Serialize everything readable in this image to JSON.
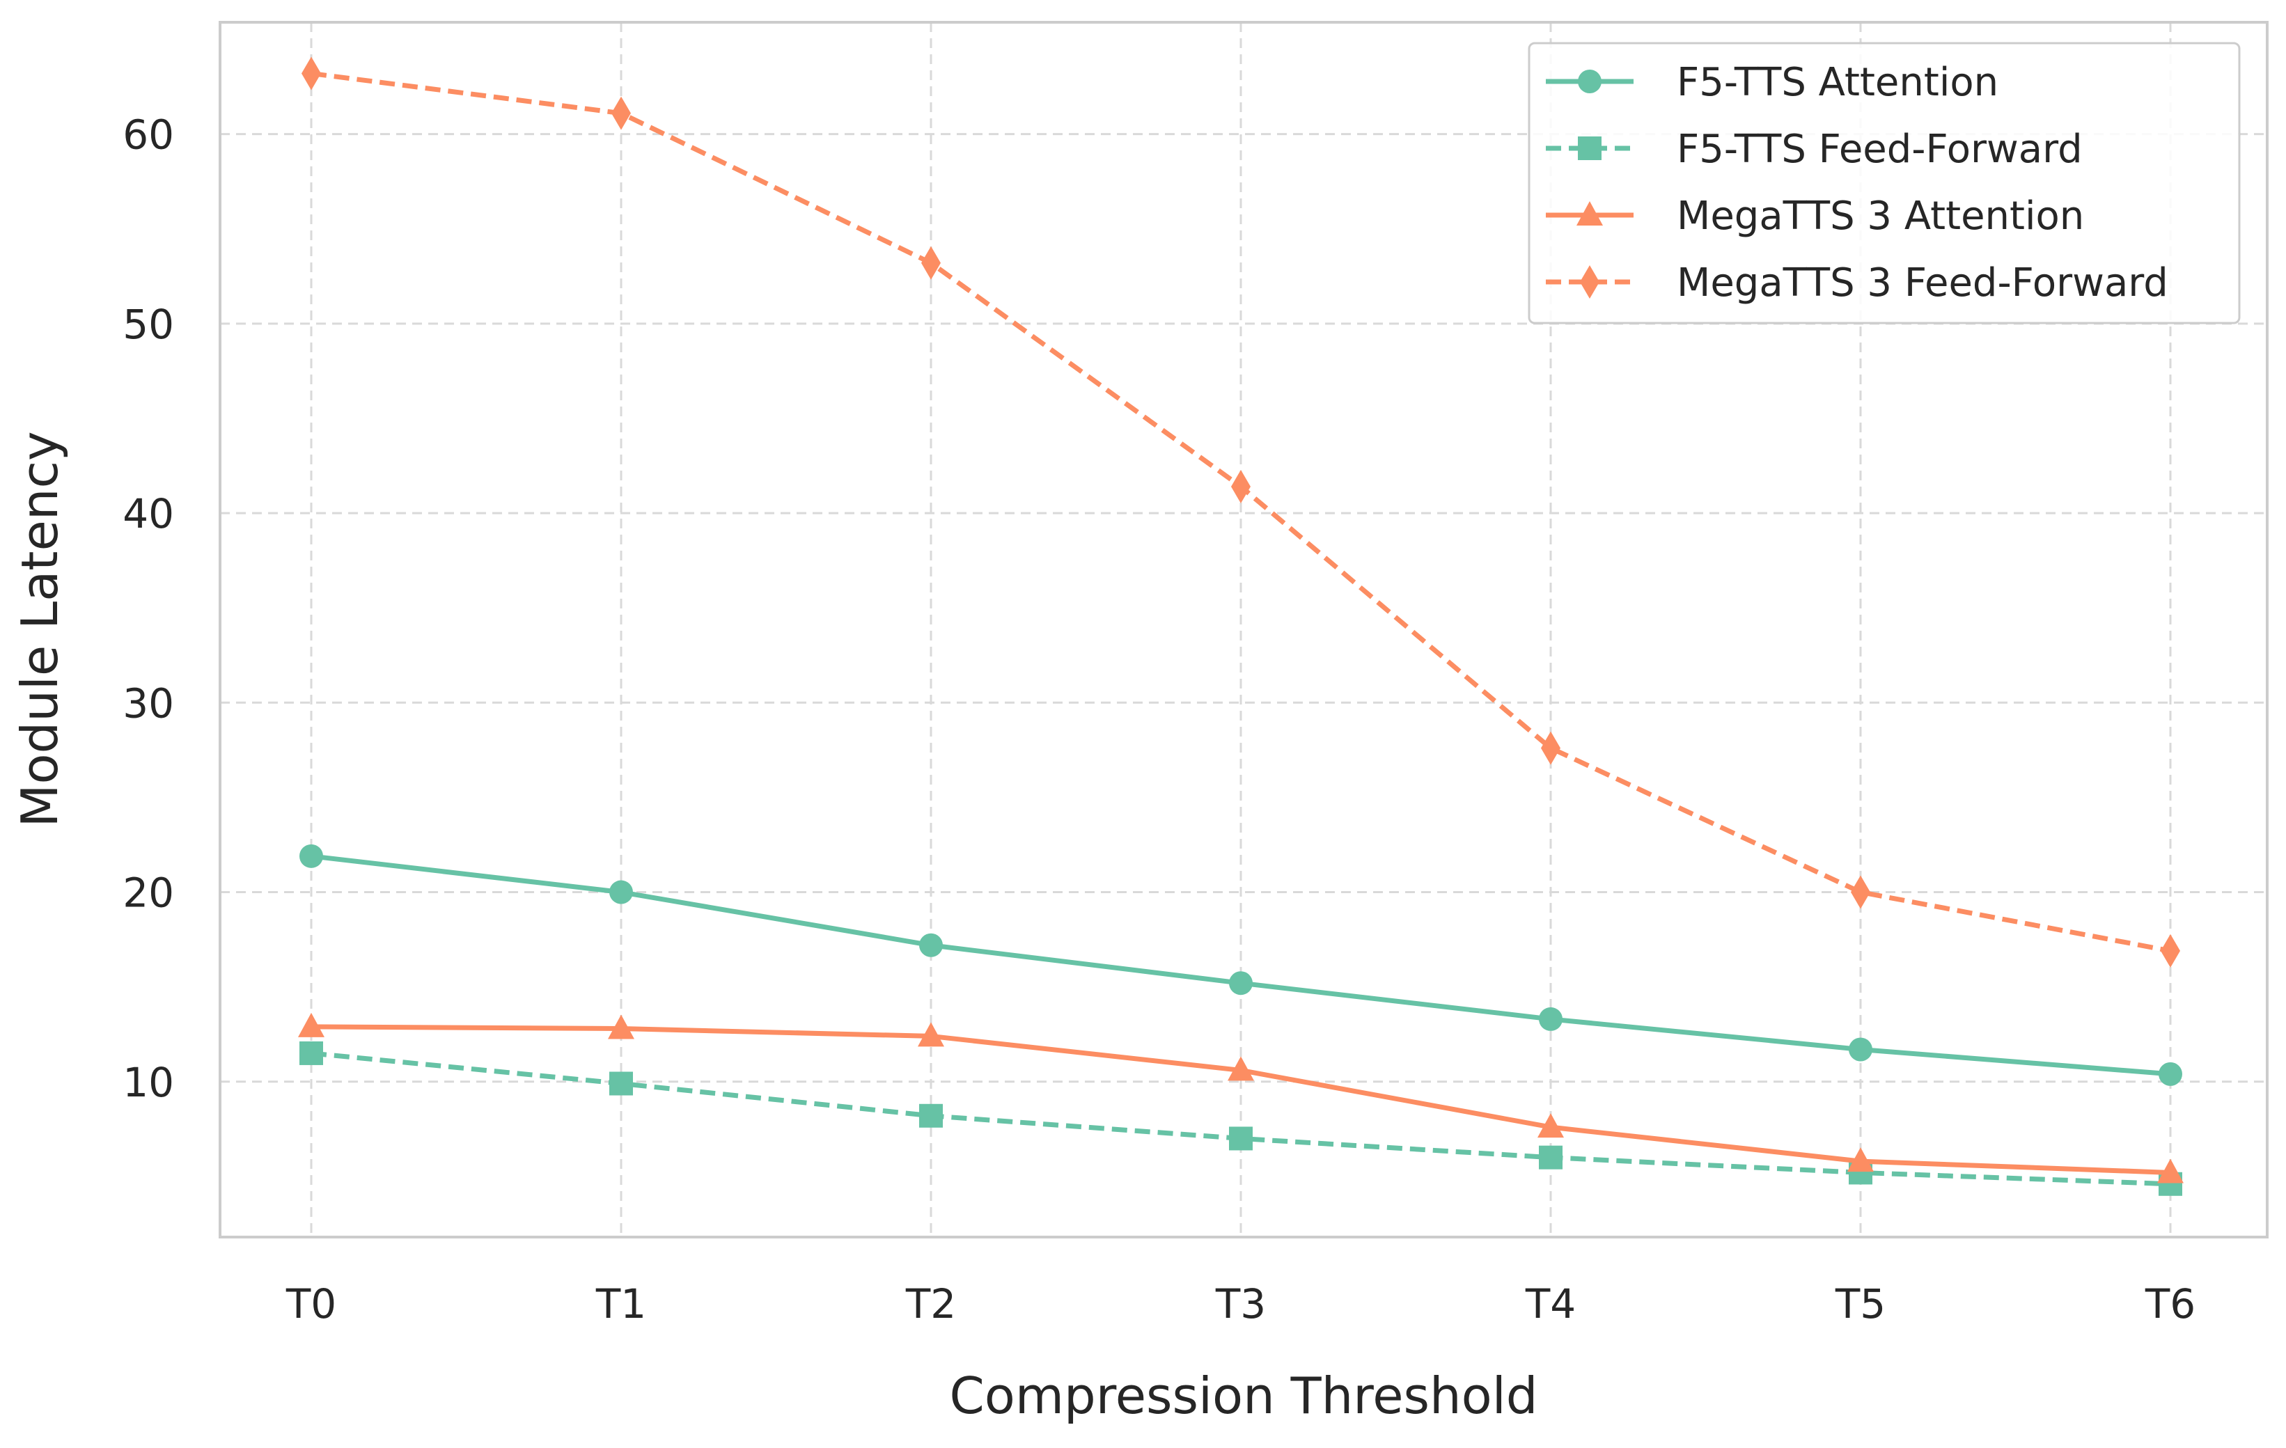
{
  "chart_data": {
    "type": "line",
    "xlabel": "Compression Threshold",
    "ylabel": "Module Latency",
    "categories": [
      "T0",
      "T1",
      "T2",
      "T3",
      "T4",
      "T5",
      "T6"
    ],
    "ylim": [
      1.8,
      65.9
    ],
    "yticks": [
      10,
      20,
      30,
      40,
      50,
      60
    ],
    "grid": true,
    "legend_position": "top-right",
    "series": [
      {
        "name": "F5-TTS Attention",
        "values": [
          21.9,
          20.0,
          17.2,
          15.2,
          13.3,
          11.7,
          10.4
        ],
        "color": "#66c2a5",
        "line_style": "solid",
        "marker": "circle"
      },
      {
        "name": "F5-TTS Feed-Forward",
        "values": [
          11.5,
          9.9,
          8.2,
          7.0,
          6.0,
          5.2,
          4.6
        ],
        "color": "#66c2a5",
        "line_style": "dashed",
        "marker": "square"
      },
      {
        "name": "MegaTTS 3 Attention",
        "values": [
          12.9,
          12.8,
          12.4,
          10.6,
          7.6,
          5.8,
          5.2
        ],
        "color": "#fc8d62",
        "line_style": "solid",
        "marker": "triangle"
      },
      {
        "name": "MegaTTS 3 Feed-Forward",
        "values": [
          63.2,
          61.1,
          53.2,
          41.4,
          27.6,
          20.0,
          16.9
        ],
        "color": "#fc8d62",
        "line_style": "dashed",
        "marker": "diamond"
      }
    ]
  }
}
